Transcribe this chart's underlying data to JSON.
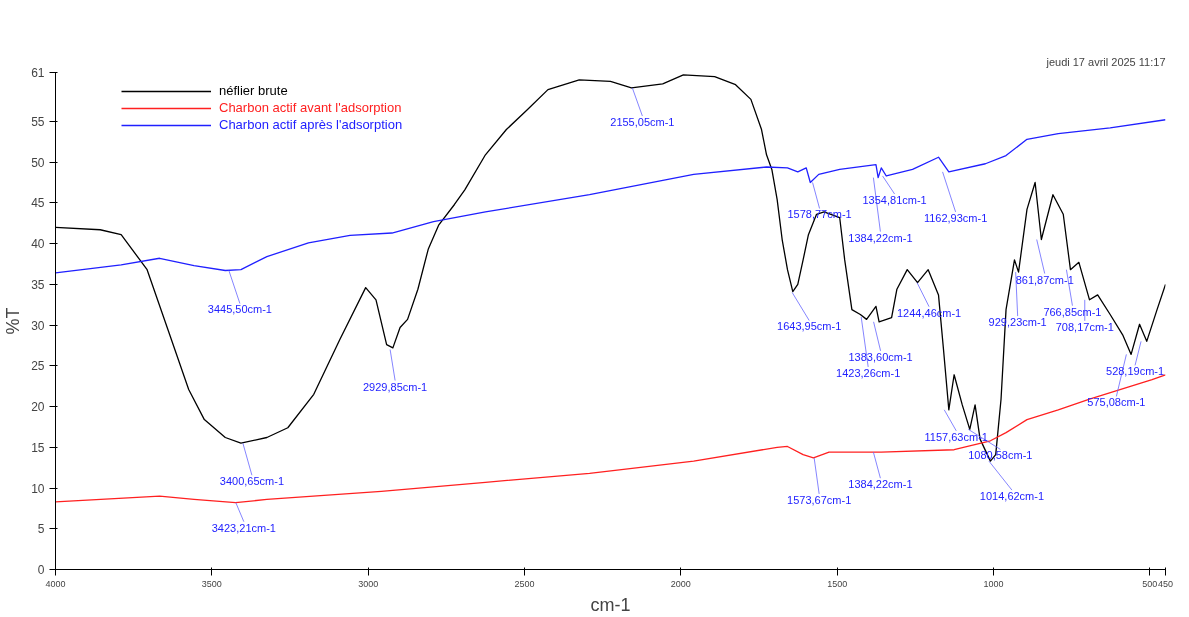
{
  "chart_data": {
    "type": "line",
    "xlabel": "cm-1",
    "ylabel": "%T",
    "xlim": [
      4000,
      450
    ],
    "xticks": [
      4000,
      3500,
      3000,
      2500,
      2000,
      1500,
      1000,
      500,
      450
    ],
    "ylim": [
      0,
      61
    ],
    "yticks": [
      0,
      5,
      10,
      15,
      20,
      25,
      30,
      35,
      40,
      45,
      50,
      55,
      61
    ],
    "grid": false,
    "legend": "top left",
    "marker": "none",
    "line_style": "solid",
    "series": [
      {
        "name": "néflier brute",
        "color": "#000000",
        "x": [
          4000,
          3857,
          3790,
          3707,
          3640,
          3574,
          3524,
          3457,
          3407,
          3324,
          3257,
          3174,
          3091,
          3008,
          2975,
          2941,
          2921,
          2898,
          2874,
          2841,
          2808,
          2774,
          2724,
          2691,
          2625,
          2558,
          2492,
          2425,
          2325,
          2225,
          2158,
          2058,
          1992,
          1892,
          1825,
          1776,
          1742,
          1726,
          1709,
          1692,
          1676,
          1659,
          1642,
          1626,
          1609,
          1592,
          1566,
          1542,
          1492,
          1476,
          1453,
          1426,
          1406,
          1376,
          1366,
          1326,
          1309,
          1276,
          1243,
          1209,
          1176,
          1160,
          1143,
          1126,
          1100,
          1076,
          1059,
          1043,
          1010,
          993,
          976,
          960,
          933,
          920,
          893,
          867,
          847,
          810,
          777,
          754,
          727,
          693,
          667,
          627,
          587,
          560,
          533,
          510,
          477,
          450
        ],
        "values": [
          42.0,
          41.7,
          41.1,
          36.8,
          29.4,
          22.1,
          18.4,
          16.2,
          15.5,
          16.2,
          17.4,
          21.5,
          28.2,
          34.6,
          33.1,
          27.6,
          27.2,
          29.7,
          30.7,
          34.4,
          39.3,
          42.3,
          44.8,
          46.6,
          50.9,
          54.0,
          56.4,
          58.9,
          60.1,
          59.9,
          59.1,
          59.6,
          60.7,
          60.5,
          59.5,
          57.7,
          54.0,
          50.9,
          49.1,
          45.4,
          40.5,
          36.8,
          34.1,
          35.0,
          38.0,
          41.1,
          43.6,
          43.9,
          43.2,
          38.0,
          31.9,
          31.3,
          30.7,
          32.3,
          30.4,
          30.9,
          34.4,
          36.8,
          35.2,
          36.8,
          33.7,
          27.0,
          19.6,
          23.9,
          20.2,
          17.2,
          20.2,
          16.0,
          13.3,
          14.1,
          20.9,
          31.9,
          38.0,
          36.5,
          44.2,
          47.5,
          40.5,
          46.0,
          43.6,
          36.8,
          37.7,
          33.1,
          33.7,
          31.3,
          28.8,
          26.4,
          30.1,
          28.0,
          31.9,
          35.0
        ]
      },
      {
        "name": "Charbon actif avant l'adsorption",
        "color": "#ff2020",
        "x": [
          4000,
          3667,
          3557,
          3424,
          3324,
          2958,
          2625,
          2292,
          1959,
          1692,
          1659,
          1609,
          1576,
          1526,
          1359,
          1126,
          1010,
          960,
          893,
          793,
          693,
          593,
          493,
          450
        ],
        "values": [
          8.3,
          9.0,
          8.6,
          8.2,
          8.6,
          9.6,
          10.7,
          11.8,
          13.3,
          15.0,
          15.1,
          14.1,
          13.7,
          14.4,
          14.4,
          14.7,
          15.8,
          16.8,
          18.4,
          19.6,
          20.9,
          22.1,
          23.3,
          23.9
        ]
      },
      {
        "name": "Charbon actif après l'adsorption",
        "color": "#2020ff",
        "x": [
          4000,
          3790,
          3667,
          3557,
          3457,
          3407,
          3324,
          3191,
          3058,
          2924,
          2791,
          2625,
          2292,
          1959,
          1726,
          1659,
          1626,
          1599,
          1586,
          1559,
          1492,
          1376,
          1369,
          1359,
          1343,
          1259,
          1176,
          1143,
          1026,
          960,
          893,
          793,
          627,
          450
        ],
        "values": [
          36.4,
          37.4,
          38.2,
          37.3,
          36.7,
          36.8,
          38.4,
          40.1,
          41.0,
          41.3,
          42.7,
          43.9,
          46.0,
          48.5,
          49.4,
          49.3,
          48.8,
          49.3,
          47.5,
          48.5,
          49.1,
          49.7,
          48.1,
          49.3,
          48.3,
          49.1,
          50.6,
          48.8,
          49.8,
          50.8,
          52.8,
          53.5,
          54.2,
          55.2
        ]
      }
    ],
    "annotations": [
      "jeudi 17 avril 2025 11:17",
      {
        "text": "3445,50cm-1",
        "x": 3445.5,
        "y": 36.7
      },
      {
        "text": "3400,65cm-1",
        "x": 3400.65,
        "y": 15.5
      },
      {
        "text": "3423,21cm-1",
        "x": 3423.21,
        "y": 8.2
      },
      {
        "text": "2929,85cm-1",
        "x": 2929.85,
        "y": 27.0
      },
      {
        "text": "2155,05cm-1",
        "x": 2155.05,
        "y": 59.1
      },
      {
        "text": "1643,95cm-1",
        "x": 1643.95,
        "y": 34.0
      },
      {
        "text": "1578,77cm-1",
        "x": 1578.77,
        "y": 47.5
      },
      {
        "text": "1384,22cm-1",
        "x": 1384.22,
        "y": 48.1
      },
      {
        "text": "1354,81cm-1",
        "x": 1354.81,
        "y": 48.3
      },
      {
        "text": "1162,93cm-1",
        "x": 1162.93,
        "y": 48.8
      },
      {
        "text": "1383,60cm-1",
        "x": 1383.6,
        "y": 30.4
      },
      {
        "text": "1423,26cm-1",
        "x": 1423.26,
        "y": 31.0
      },
      {
        "text": "1244,46cm-1",
        "x": 1244.46,
        "y": 35.2
      },
      {
        "text": "1157,63cm-1",
        "x": 1157.63,
        "y": 19.6
      },
      {
        "text": "1080,58cm-1",
        "x": 1080.58,
        "y": 17.2
      },
      {
        "text": "1014,62cm-1",
        "x": 1014.62,
        "y": 13.3
      },
      {
        "text": "929,23cm-1",
        "x": 929.23,
        "y": 36.5
      },
      {
        "text": "861,87cm-1",
        "x": 861.87,
        "y": 40.5
      },
      {
        "text": "766,85cm-1",
        "x": 766.85,
        "y": 36.8
      },
      {
        "text": "708,17cm-1",
        "x": 708.17,
        "y": 33.1
      },
      {
        "text": "575,08cm-1",
        "x": 575.08,
        "y": 26.4
      },
      {
        "text": "528,19cm-1",
        "x": 528.19,
        "y": 28.0
      },
      {
        "text": "1573,67cm-1",
        "x": 1573.67,
        "y": 13.7
      },
      {
        "text": "1384,22cm-1",
        "x": 1384.22,
        "y": 14.4
      }
    ]
  }
}
